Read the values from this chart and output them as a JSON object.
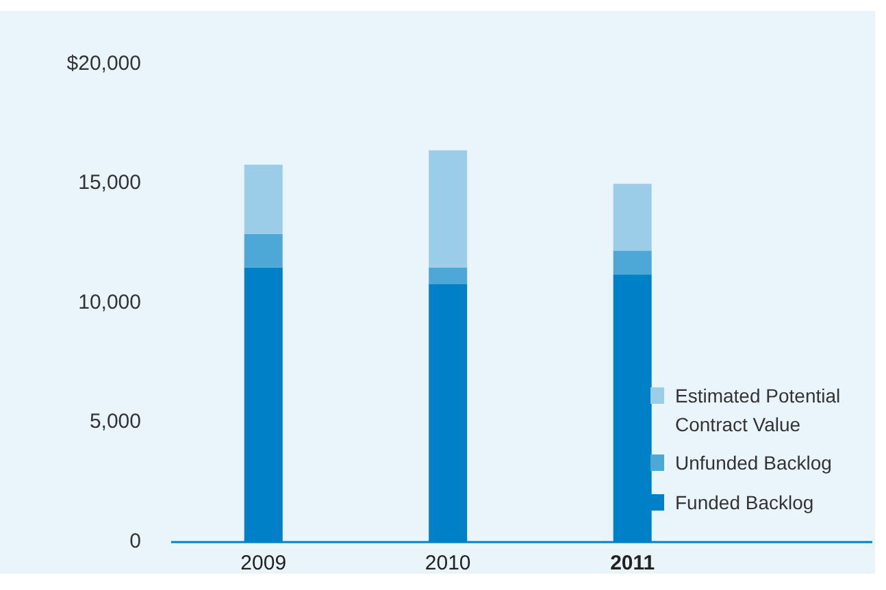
{
  "chart_data": {
    "type": "bar",
    "stacked": true,
    "categories": [
      "2009",
      "2010",
      "2011"
    ],
    "series": [
      {
        "name": "Funded Backlog",
        "color": "#0080c6",
        "values": [
          11500,
          10800,
          11200
        ]
      },
      {
        "name": "Unfunded Backlog",
        "color": "#4da8d8",
        "values": [
          1400,
          700,
          1000
        ]
      },
      {
        "name": "Estimated Potential Contract Value",
        "color": "#9bcde9",
        "values": [
          2900,
          4900,
          2800
        ]
      }
    ],
    "ylim": [
      0,
      20000
    ],
    "yticks": [
      0,
      {
        "value": 5000,
        "label": "5,000"
      },
      {
        "value": 10000,
        "label": "10,000"
      },
      {
        "value": 15000,
        "label": "15,000"
      },
      {
        "value": 20000,
        "label": "$20,000"
      }
    ],
    "grid": false,
    "legend": "bottom right"
  }
}
